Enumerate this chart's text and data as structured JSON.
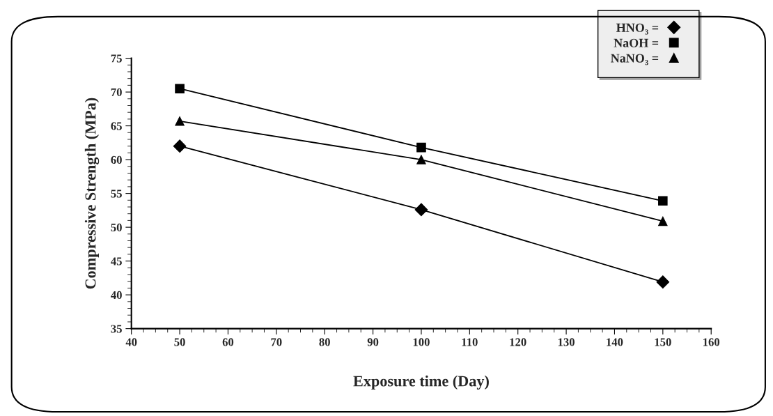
{
  "chart_data": {
    "type": "line",
    "xlabel": "Exposure time (Day)",
    "ylabel": "Compressive Strength (MPa)",
    "x": [
      50,
      100,
      150
    ],
    "series": [
      {
        "name": "HNO₃ =",
        "color": "#000000",
        "marker": "diamond",
        "values": [
          62,
          52.6,
          41.9
        ]
      },
      {
        "name": "NaOH =",
        "color": "#000000",
        "marker": "square",
        "values": [
          70.5,
          61.8,
          53.9
        ]
      },
      {
        "name": "NaNO₃ =",
        "color": "#000000",
        "marker": "triangle",
        "values": [
          65.7,
          60,
          50.9
        ]
      }
    ],
    "xlim": [
      40,
      160
    ],
    "xticks": [
      40,
      50,
      60,
      70,
      80,
      90,
      100,
      110,
      120,
      130,
      140,
      150,
      160
    ],
    "ylim": [
      35,
      75
    ],
    "yticks": [
      35,
      40,
      45,
      50,
      55,
      60,
      65,
      70,
      75
    ],
    "grid": false,
    "legend": "top right",
    "line_style": "solid"
  }
}
